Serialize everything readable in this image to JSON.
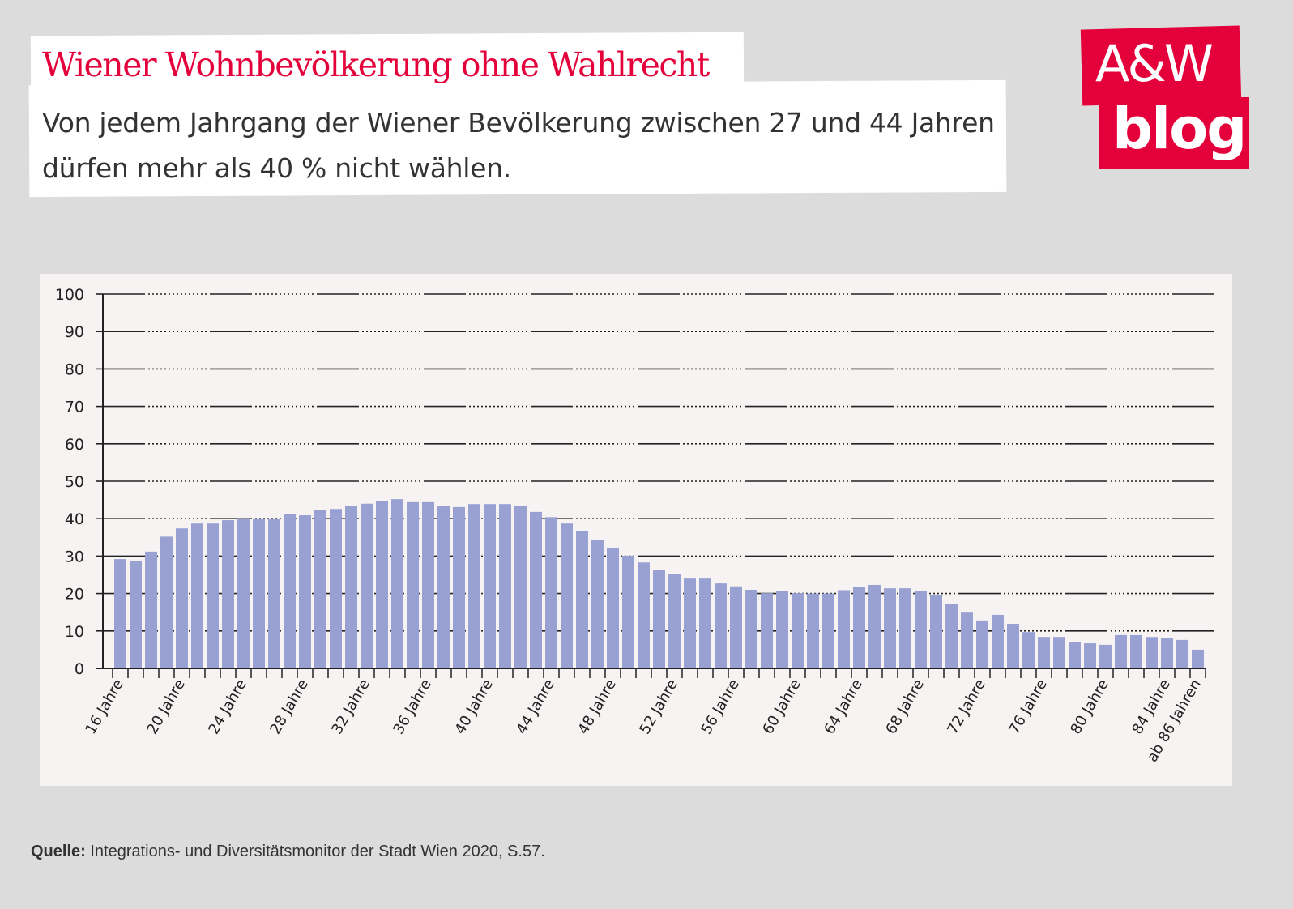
{
  "header": {
    "title": "Wiener Wohnbevölkerung ohne Wahlrecht",
    "subtitle": "Von jedem Jahrgang der Wiener Bevölkerung zwischen 27 und 44 Jahren dürfen mehr als 40 % nicht wählen."
  },
  "logo": {
    "line1": "A&W",
    "line2": "blog"
  },
  "source": {
    "label": "Quelle:",
    "text": " Integrations- und Diversitätsmonitor der Stadt Wien 2020, S.57."
  },
  "colors": {
    "accent": "#e4003a",
    "bar": "#99a1d3",
    "panel": "#f6f3f2"
  },
  "chart_data": {
    "type": "bar",
    "title": "",
    "xlabel": "",
    "ylabel": "",
    "ylim": [
      0,
      100
    ],
    "yticks": [
      0,
      10,
      20,
      30,
      40,
      50,
      60,
      70,
      80,
      90,
      100
    ],
    "grid": true,
    "categories": [
      "16",
      "17",
      "18",
      "19",
      "20",
      "21",
      "22",
      "23",
      "24",
      "25",
      "26",
      "27",
      "28",
      "29",
      "30",
      "31",
      "32",
      "33",
      "34",
      "35",
      "36",
      "37",
      "38",
      "39",
      "40",
      "41",
      "42",
      "43",
      "44",
      "45",
      "46",
      "47",
      "48",
      "49",
      "50",
      "51",
      "52",
      "53",
      "54",
      "55",
      "56",
      "57",
      "58",
      "59",
      "60",
      "61",
      "62",
      "63",
      "64",
      "65",
      "66",
      "67",
      "68",
      "69",
      "70",
      "71",
      "72",
      "73",
      "74",
      "75",
      "76",
      "77",
      "78",
      "79",
      "80",
      "81",
      "82",
      "83",
      "84",
      "85",
      "86+"
    ],
    "values": [
      29.2,
      28.6,
      31.2,
      35.2,
      37.4,
      38.7,
      38.7,
      39.6,
      40.1,
      40.0,
      40.0,
      41.3,
      40.9,
      42.2,
      42.6,
      43.5,
      44.0,
      44.8,
      45.2,
      44.4,
      44.4,
      43.5,
      43.1,
      43.9,
      43.9,
      43.9,
      43.5,
      41.8,
      40.4,
      38.7,
      36.6,
      34.4,
      32.2,
      30.1,
      28.3,
      26.2,
      25.3,
      24.0,
      24.0,
      22.7,
      21.9,
      21.0,
      20.1,
      20.6,
      20.1,
      20.0,
      20.0,
      20.9,
      21.7,
      22.3,
      21.4,
      21.4,
      20.6,
      19.7,
      17.1,
      14.9,
      12.8,
      14.3,
      11.9,
      9.7,
      8.4,
      8.4,
      7.1,
      6.7,
      6.3,
      8.9,
      8.9,
      8.4,
      8.0,
      7.6,
      5.0
    ],
    "tick_labels": [
      "16 Jahre",
      "20 Jahre",
      "24 Jahre",
      "28 Jahre",
      "32 Jahre",
      "36 Jahre",
      "40 Jahre",
      "44 Jahre",
      "48 Jahre",
      "52 Jahre",
      "56 Jahre",
      "60 Jahre",
      "64 Jahre",
      "68 Jahre",
      "72 Jahre",
      "76 Jahre",
      "80 Jahre",
      "84 Jahre",
      "ab 86 Jahren"
    ],
    "tick_label_indices": [
      0,
      4,
      8,
      12,
      16,
      20,
      24,
      28,
      32,
      36,
      40,
      44,
      48,
      52,
      56,
      60,
      64,
      68,
      70
    ]
  }
}
